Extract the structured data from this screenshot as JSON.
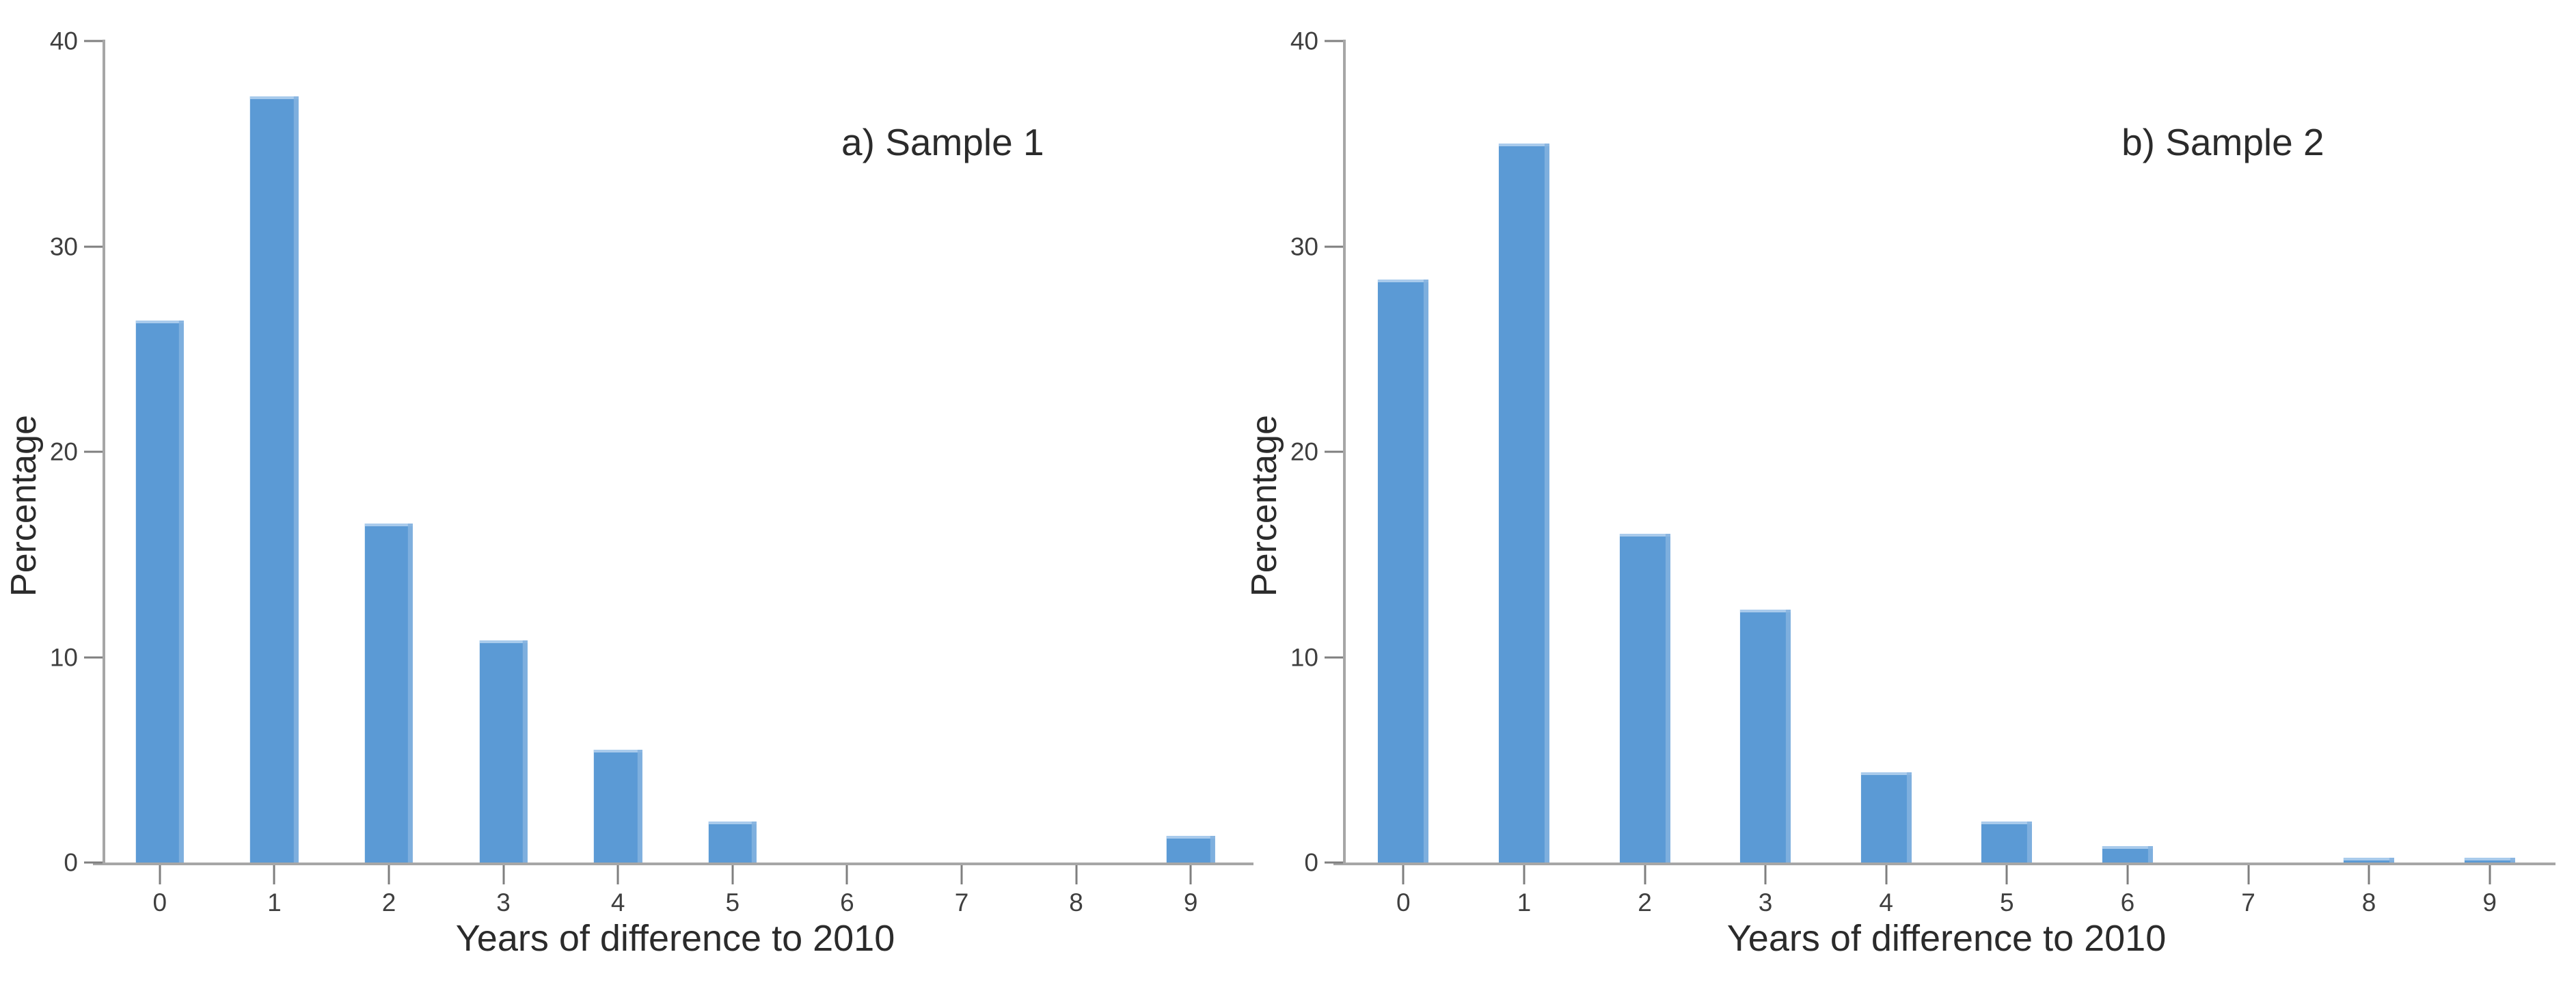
{
  "figure_style": {
    "background": "#ffffff",
    "bar_color": "#5b9ad5",
    "bar_top_highlight": "#a9cbec",
    "bar_right_highlight": "#85b3df",
    "axis_line_color": "#a6a6a6",
    "tick_mark_color": "#7f7f7f",
    "tick_text_color": "#3f3f3f",
    "label_text_color": "#2b2b2b"
  },
  "chart_data": [
    {
      "type": "bar",
      "title": "a) Sample 1",
      "xlabel": "Years of difference to 2010",
      "ylabel": "Percentage",
      "categories": [
        "0",
        "1",
        "2",
        "3",
        "4",
        "5",
        "6",
        "7",
        "8",
        "9"
      ],
      "values": [
        26.4,
        37.3,
        16.5,
        10.8,
        5.5,
        2.0,
        0,
        0,
        0,
        1.3
      ],
      "ylim": [
        0,
        40
      ],
      "y_ticks": [
        0,
        10,
        20,
        30,
        40
      ],
      "grid": false,
      "legend_position": "none"
    },
    {
      "type": "bar",
      "title": "b) Sample 2",
      "xlabel": "Years of difference to 2010",
      "ylabel": "Percentage",
      "categories": [
        "0",
        "1",
        "2",
        "3",
        "4",
        "5",
        "6",
        "7",
        "8",
        "9"
      ],
      "values": [
        28.4,
        35.0,
        16.0,
        12.3,
        4.4,
        2.0,
        0.8,
        0,
        0.25,
        0.25
      ],
      "ylim": [
        0,
        40
      ],
      "y_ticks": [
        0,
        10,
        20,
        30,
        40
      ],
      "grid": false,
      "legend_position": "none"
    }
  ]
}
